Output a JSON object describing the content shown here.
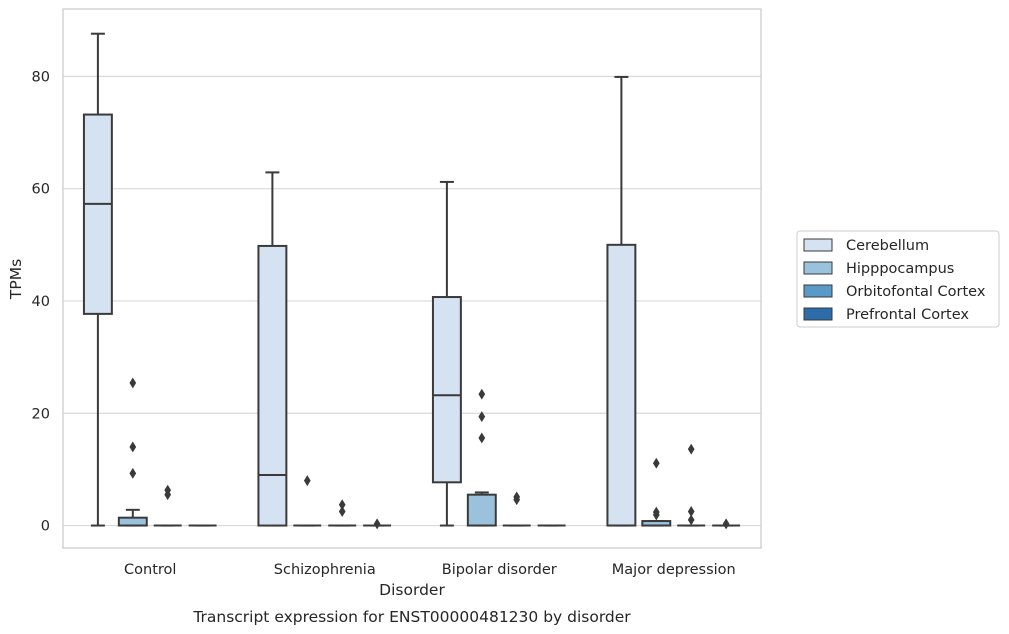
{
  "chart_data": {
    "type": "box",
    "title": "",
    "caption": "Transcript expression for ENST00000481230 by disorder",
    "xlabel": "Disorder",
    "ylabel": "TPMs",
    "ylim": [
      -4,
      92
    ],
    "yticks": [
      0,
      20,
      40,
      60,
      80
    ],
    "grid": "horizontal",
    "legend_position": "right",
    "categories": [
      "Control",
      "Schizophrenia",
      "Bipolar disorder",
      "Major depression"
    ],
    "series": [
      {
        "name": "Cerebellum",
        "color": "#d4e2f1",
        "boxes": [
          {
            "whislo": 0,
            "q1": 37.7,
            "med": 57.3,
            "q3": 73.2,
            "whishi": 87.6,
            "fliers": []
          },
          {
            "whislo": 0,
            "q1": 0,
            "med": 9.0,
            "q3": 49.8,
            "whishi": 62.9,
            "fliers": []
          },
          {
            "whislo": 0,
            "q1": 7.7,
            "med": 23.2,
            "q3": 40.7,
            "whishi": 61.2,
            "fliers": []
          },
          {
            "whislo": 0,
            "q1": 0,
            "med": 0,
            "q3": 50.0,
            "whishi": 79.9,
            "fliers": []
          }
        ]
      },
      {
        "name": "Hipppocampus",
        "color": "#9bc2dc",
        "boxes": [
          {
            "whislo": 0,
            "q1": 0,
            "med": 0,
            "q3": 1.4,
            "whishi": 2.8,
            "fliers": [
              25.4,
              14.0,
              9.3
            ]
          },
          {
            "whislo": 0,
            "q1": 0,
            "med": 0,
            "q3": 0,
            "whishi": 0,
            "fliers": [
              8.0
            ]
          },
          {
            "whislo": 0,
            "q1": 0,
            "med": 0,
            "q3": 5.5,
            "whishi": 5.9,
            "fliers": [
              23.4,
              19.4,
              15.6
            ]
          },
          {
            "whislo": 0,
            "q1": 0,
            "med": 0,
            "q3": 0.8,
            "whishi": 0.8,
            "fliers": [
              11.1,
              2.4,
              1.9
            ]
          }
        ]
      },
      {
        "name": "Orbitofontal Cortex",
        "color": "#5a9ac8",
        "boxes": [
          {
            "whislo": 0,
            "q1": 0,
            "med": 0,
            "q3": 0,
            "whishi": 0,
            "fliers": [
              6.3,
              5.5
            ]
          },
          {
            "whislo": 0,
            "q1": 0,
            "med": 0,
            "q3": 0,
            "whishi": 0,
            "fliers": [
              3.7,
              2.5
            ]
          },
          {
            "whislo": 0,
            "q1": 0,
            "med": 0,
            "q3": 0,
            "whishi": 0,
            "fliers": [
              5.1,
              4.6
            ]
          },
          {
            "whislo": 0,
            "q1": 0,
            "med": 0,
            "q3": 0,
            "whishi": 0,
            "fliers": [
              13.6,
              2.5,
              1.0
            ]
          }
        ]
      },
      {
        "name": "Prefrontal Cortex",
        "color": "#2b6ca9",
        "boxes": [
          {
            "whislo": 0,
            "q1": 0,
            "med": 0,
            "q3": 0,
            "whishi": 0,
            "fliers": []
          },
          {
            "whislo": 0,
            "q1": 0,
            "med": 0,
            "q3": 0,
            "whishi": 0,
            "fliers": [
              0.3
            ]
          },
          {
            "whislo": 0,
            "q1": 0,
            "med": 0,
            "q3": 0,
            "whishi": 0,
            "fliers": []
          },
          {
            "whislo": 0,
            "q1": 0,
            "med": 0,
            "q3": 0,
            "whishi": 0,
            "fliers": [
              0.3
            ]
          }
        ]
      }
    ]
  }
}
